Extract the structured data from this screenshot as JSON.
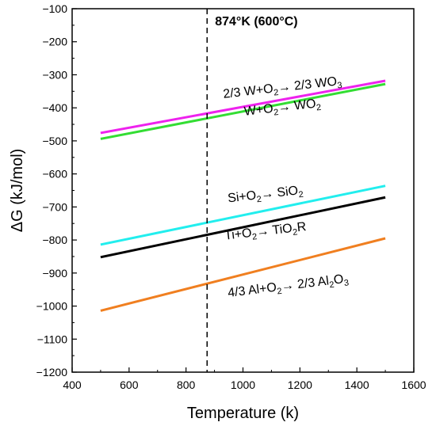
{
  "chart_data": {
    "type": "line",
    "xlabel": "Temperature (k)",
    "ylabel": "ΔG (kJ/mol)",
    "xlim": [
      400,
      1600
    ],
    "ylim": [
      -1200,
      -100
    ],
    "xticks": [
      400,
      600,
      800,
      1000,
      1200,
      1400,
      1600
    ],
    "yticks": [
      -100,
      -200,
      -300,
      -400,
      -500,
      -600,
      -700,
      -800,
      -900,
      -1000,
      -1100,
      -1200
    ],
    "grid": false,
    "vline": {
      "x": 874,
      "label": "874°K (600°C)"
    },
    "series": [
      {
        "key": "wo3",
        "color": "#ee22ee",
        "x": [
          500,
          1500
        ],
        "y": [
          -476,
          -318
        ]
      },
      {
        "key": "wo2",
        "color": "#33dd33",
        "x": [
          500,
          1500
        ],
        "y": [
          -494,
          -328
        ]
      },
      {
        "key": "sio2",
        "color": "#22eeee",
        "x": [
          500,
          1500
        ],
        "y": [
          -814,
          -636
        ]
      },
      {
        "key": "tio2",
        "color": "#000000",
        "x": [
          500,
          1500
        ],
        "y": [
          -852,
          -671
        ]
      },
      {
        "key": "al2o3",
        "color": "#f07f20",
        "x": [
          500,
          1500
        ],
        "y": [
          -1014,
          -795
        ]
      }
    ],
    "annotations": [
      {
        "key": "wo3",
        "parts": [
          "2/3 W+O",
          "2",
          "→ 2/3 WO",
          "3"
        ],
        "x": 1140,
        "y": -350,
        "angle": -6.5,
        "anchor": "middle"
      },
      {
        "key": "wo2",
        "parts": [
          "W+O",
          "2",
          "→ WO",
          "2"
        ],
        "x": 1140,
        "y": -410,
        "angle": -6.5,
        "anchor": "middle"
      },
      {
        "key": "sio2",
        "parts": [
          "Si+O",
          "2",
          "→ SiO",
          "2"
        ],
        "x": 1080,
        "y": -673,
        "angle": -6.5,
        "anchor": "middle"
      },
      {
        "key": "tio2",
        "parts": [
          "Ti+O",
          "2",
          "→ TiO",
          "2",
          "R"
        ],
        "x": 1080,
        "y": -785,
        "angle": -6.5,
        "anchor": "middle"
      },
      {
        "key": "al2o3",
        "parts": [
          "4/3 Al+O",
          "2",
          "→ 2/3 Al",
          "2",
          "O",
          "3"
        ],
        "x": 1160,
        "y": -950,
        "angle": -7,
        "anchor": "middle"
      }
    ]
  }
}
